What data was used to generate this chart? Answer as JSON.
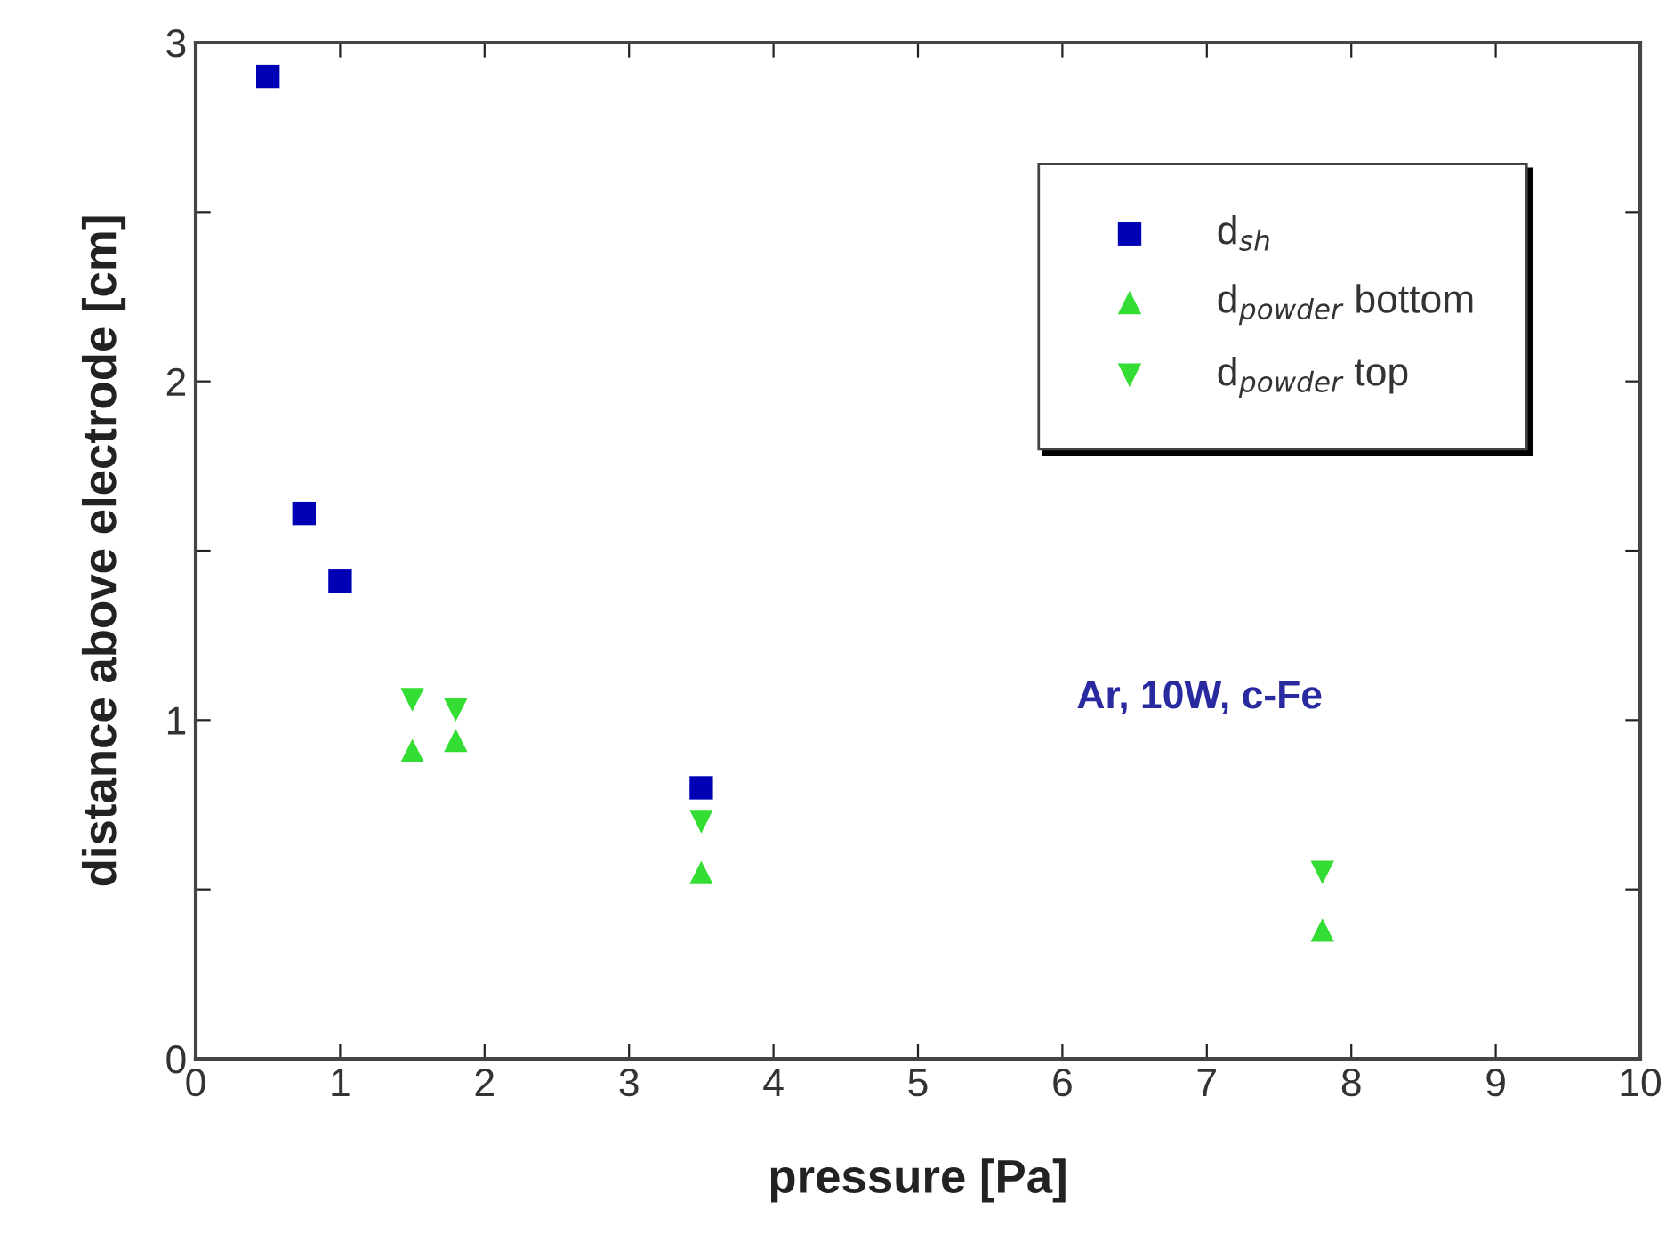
{
  "chart_data": {
    "type": "scatter",
    "xlabel": "pressure [Pa]",
    "ylabel": "distance above electrode [cm]",
    "xlim": [
      0,
      10
    ],
    "ylim": [
      0,
      3
    ],
    "xticks": [
      0,
      1,
      2,
      3,
      4,
      5,
      6,
      7,
      8,
      9,
      10
    ],
    "yticks": [
      0,
      {
        "value": 0.5,
        "label": null
      },
      1,
      {
        "value": 1.5,
        "label": null
      },
      2,
      {
        "value": 2.5,
        "label": null
      },
      3
    ],
    "grid": false,
    "legend": "top right",
    "annotations": [
      "Ar, 10W, c-Fe"
    ],
    "series": [
      {
        "name": "d$_{sh}$",
        "color": "#0000b4",
        "marker": "square",
        "x": [
          0.5,
          0.75,
          1.0,
          3.5
        ],
        "values": [
          2.9,
          1.61,
          1.41,
          0.8
        ]
      },
      {
        "name": "d$_{powder}$ bottom",
        "color": "#33dd33",
        "marker": "triangle",
        "x": [
          1.5,
          1.8,
          3.5,
          7.8
        ],
        "values": [
          0.91,
          0.94,
          0.55,
          0.38
        ]
      },
      {
        "name": "d$_{powder}$ top",
        "color": "#33dd33",
        "marker": "triangle_down",
        "x": [
          1.5,
          1.8,
          3.5,
          7.8
        ],
        "values": [
          1.06,
          1.03,
          0.7,
          0.55
        ]
      }
    ]
  }
}
